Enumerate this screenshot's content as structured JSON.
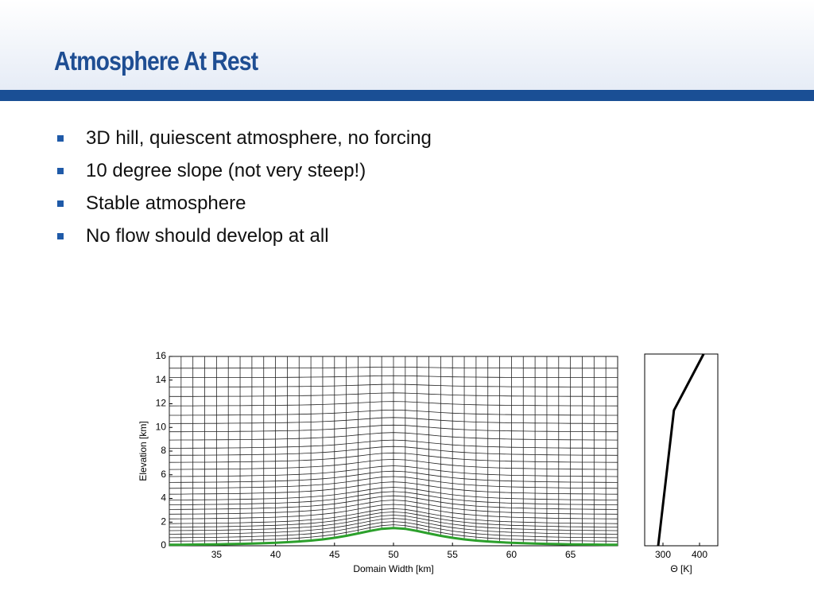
{
  "header": {
    "title": "Atmosphere At Rest"
  },
  "bullets": [
    "3D hill, quiescent atmosphere, no forcing",
    "10 degree slope (not very steep!)",
    "Stable atmosphere",
    "No flow should develop at all"
  ],
  "chart_data": [
    {
      "type": "line",
      "xlabel": "Domain Width [km]",
      "ylabel": "Elevation [km]",
      "xlim": [
        31,
        69
      ],
      "ylim": [
        0,
        16
      ],
      "xticks": [
        35,
        40,
        45,
        50,
        55,
        60,
        65
      ],
      "yticks": [
        0,
        2,
        4,
        6,
        8,
        10,
        12,
        14,
        16
      ],
      "mesh_x": [
        31,
        32,
        33,
        34,
        35,
        36,
        37,
        38,
        39,
        40,
        41,
        42,
        43,
        44,
        45,
        46,
        47,
        48,
        49,
        50,
        51,
        52,
        53,
        54,
        55,
        56,
        57,
        58,
        59,
        60,
        61,
        62,
        63,
        64,
        65,
        66,
        67,
        68,
        69
      ],
      "mesh_levels": [
        0.3,
        0.6,
        0.9,
        1.2,
        1.5,
        1.8,
        2.2,
        2.6,
        3.0,
        3.4,
        3.8,
        4.3,
        4.8,
        5.3,
        5.8,
        6.4,
        7.0,
        7.6,
        8.2,
        8.9,
        9.6,
        10.3,
        11.0,
        11.8,
        12.6,
        13.4,
        14.2,
        15.0,
        16
      ],
      "series": [
        {
          "color": "#2ca02c",
          "x": [
            31,
            32,
            33,
            34,
            35,
            36,
            37,
            38,
            39,
            40,
            41,
            42,
            43,
            44,
            45,
            46,
            47,
            48,
            49,
            50,
            51,
            52,
            53,
            54,
            55,
            56,
            57,
            58,
            59,
            60,
            61,
            62,
            63,
            64,
            65,
            66,
            67,
            68,
            69
          ],
          "values": [
            0.08,
            0.09,
            0.1,
            0.11,
            0.12,
            0.14,
            0.16,
            0.19,
            0.22,
            0.25,
            0.3,
            0.36,
            0.44,
            0.54,
            0.67,
            0.84,
            1.04,
            1.25,
            1.43,
            1.5,
            1.43,
            1.25,
            1.04,
            0.84,
            0.67,
            0.54,
            0.44,
            0.36,
            0.3,
            0.25,
            0.22,
            0.19,
            0.16,
            0.14,
            0.12,
            0.11,
            0.1,
            0.09,
            0.08
          ]
        }
      ]
    },
    {
      "type": "line",
      "xlabel": "Θ [K]",
      "xlim": [
        250,
        450
      ],
      "ylim": [
        0,
        16
      ],
      "xticks": [
        300,
        400
      ],
      "series": [
        {
          "color": "#000000",
          "x": [
            287,
            330,
            411
          ],
          "values": [
            0,
            11.3,
            16
          ]
        }
      ]
    }
  ]
}
